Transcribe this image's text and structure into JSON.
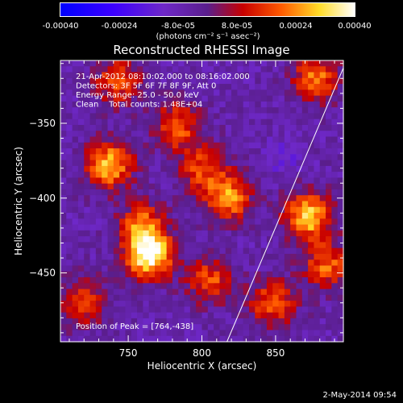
{
  "colorbar": {
    "ticks": [
      "-0.00040",
      "-0.00024",
      "-8.0e-05",
      "8.0e-05",
      "0.00024",
      "0.00040"
    ],
    "unit": "(photons cm⁻² s⁻¹ asec⁻²)",
    "range": [
      -0.0004,
      0.0004
    ]
  },
  "chart_data": {
    "type": "heatmap",
    "title": "Reconstructed RHESSI Image",
    "xlabel": "Heliocentric X (arcsec)",
    "ylabel": "Heliocentric Y (arcsec)",
    "xlim": [
      704,
      896
    ],
    "ylim": [
      -496,
      -308
    ],
    "xticks": [
      750,
      800,
      850
    ],
    "yticks": [
      -350,
      -400,
      -450
    ],
    "annotations": [
      "21-Apr-2012 08:10:02.000 to 08:16:02.000",
      "Detectors: 3F 5F 6F 7F 8F 9F, Att 0",
      "Energy Range: 25.0 - 50.0 keV",
      "Clean    Total counts: 1.48E+04"
    ],
    "peak_label": "Position of Peak = [764,-438]",
    "peak": [
      764,
      -438
    ],
    "bright_sources": [
      {
        "x": 764,
        "y": -438,
        "intensity": 0.0004
      },
      {
        "x": 737,
        "y": -378,
        "intensity": 0.0003
      },
      {
        "x": 872,
        "y": -412,
        "intensity": 0.00032
      },
      {
        "x": 818,
        "y": -400,
        "intensity": 0.00026
      },
      {
        "x": 783,
        "y": -352,
        "intensity": 0.0002
      },
      {
        "x": 848,
        "y": -470,
        "intensity": 0.0002
      },
      {
        "x": 877,
        "y": -320,
        "intensity": 0.00022
      },
      {
        "x": 743,
        "y": -322,
        "intensity": 0.00018
      },
      {
        "x": 720,
        "y": -470,
        "intensity": 0.00016
      },
      {
        "x": 805,
        "y": -455,
        "intensity": 0.00018
      },
      {
        "x": 760,
        "y": -418,
        "intensity": 0.0002
      },
      {
        "x": 800,
        "y": -380,
        "intensity": 0.00016
      },
      {
        "x": 885,
        "y": -445,
        "intensity": 0.0002
      }
    ],
    "dark_region": {
      "x": 855,
      "y": -372,
      "intensity": -0.00014
    },
    "limb_line": {
      "x": [
        817,
        896
      ],
      "y": [
        -496,
        -313
      ]
    }
  },
  "timestamp": "2-May-2014 09:54"
}
